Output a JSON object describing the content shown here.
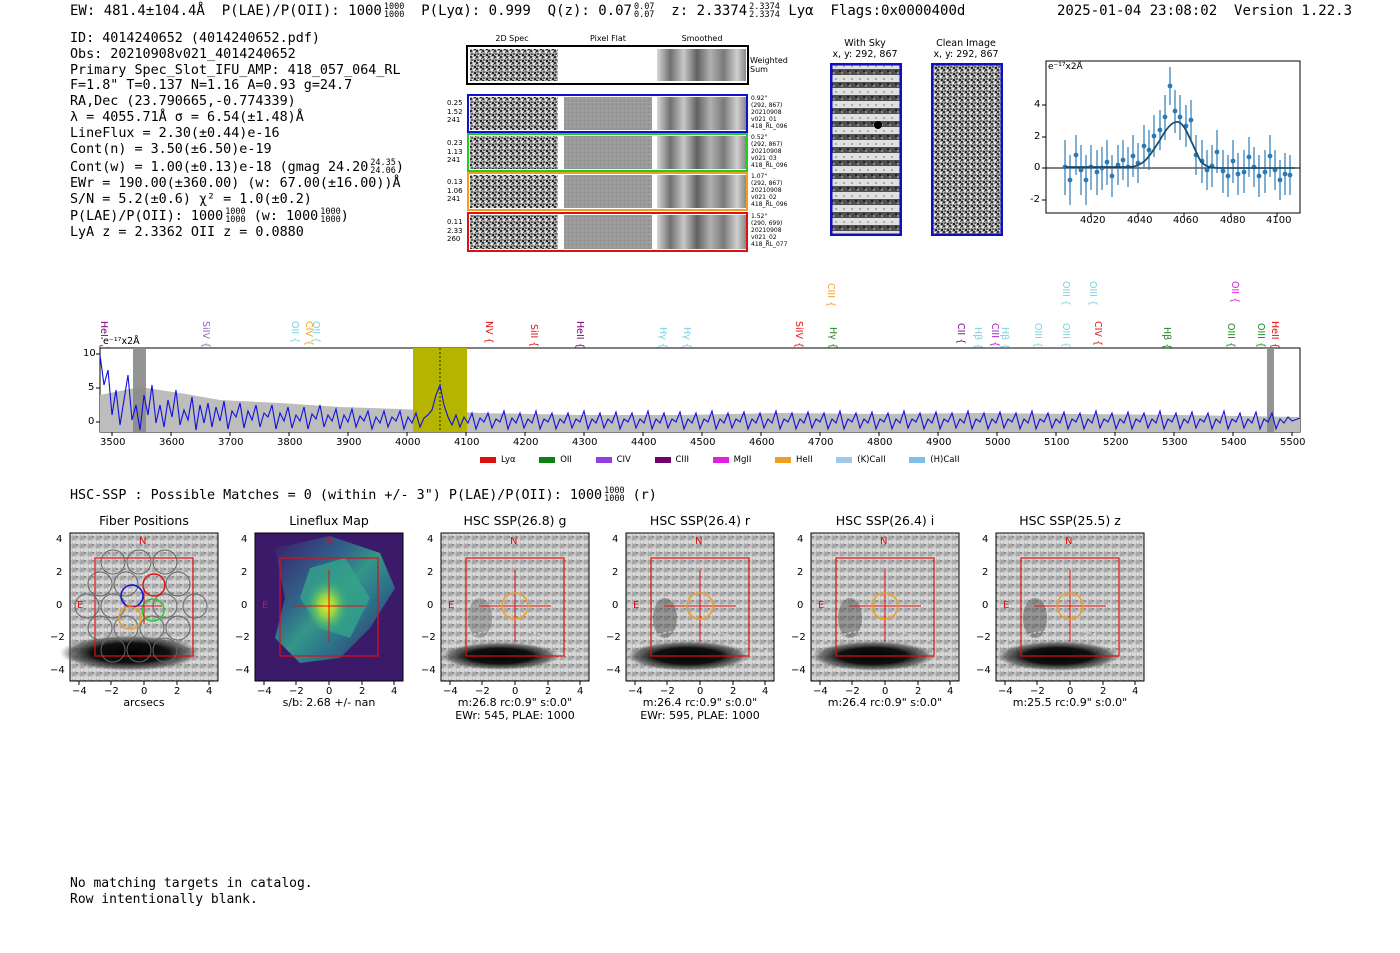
{
  "header": {
    "ew": "EW: 481.4±104.4Å",
    "plae_label": "P(LAE)/P(OII): 1000",
    "plae_hi": "1000",
    "plae_lo": "1000",
    "plya": "P(Lyα): 0.999",
    "qz_label": "Q(z): 0.07",
    "qz_hi": "0.07",
    "qz_lo": "0.07",
    "z_label": "z: 2.3374",
    "z_hi": "2.3374",
    "z_lo": "2.3374",
    "z_line": "Lyα",
    "flags": "Flags:0x0000400d",
    "datetime": "2025-01-04 23:08:02",
    "version": "Version 1.22.3"
  },
  "info": {
    "id": "ID: 4014240652 (4014240652.pdf)",
    "obs": "Obs: 20210908v021_4014240652",
    "primary": "Primary Spec_Slot_IFU_AMP: 418_057_064_RL",
    "params": "F=1.8\"  T=0.137  N=1.16  A=0.93  g=24.7",
    "radec": "RA,Dec (23.790665,-0.774339)",
    "lambda": "λ = 4055.71Å  σ = 6.54(±1.48)Å",
    "lineflux": "LineFlux = 2.30(±0.44)e-16",
    "contn": "Cont(n) = 3.50(±6.50)e-19",
    "contw": "Cont(w) = 1.00(±0.13)e-18 (gmag 24.20",
    "contw_hi": "24.35",
    "contw_lo": "24.06",
    "contw_end": ")",
    "ewr": "EWr = 190.00(±360.00) (w: 67.00(±16.00))Å",
    "sn": "S/N = 5.2(±0.6)  χ² = 1.0(±0.2)",
    "plae": "P(LAE)/P(OII): 1000",
    "plae_hi": "1000",
    "plae_lo": "1000",
    "plae_w": "(w: 1000",
    "plae_w_hi": "1000",
    "plae_w_lo": "1000",
    "plae_w_end": ")",
    "lya_z": "LyA z = 2.3362  OII z = 0.0880"
  },
  "cutouts": {
    "col_titles": [
      "2D Spec",
      "Pixel Flat",
      "Smoothed"
    ],
    "weighted_sum": [
      "Weighted",
      "Sum"
    ],
    "rows": [
      {
        "left": [
          "0.25",
          "1.52",
          "241"
        ],
        "right": [
          "0.92\"",
          "(292, 867)",
          "20210908",
          "v021_01",
          "418_RL_096"
        ],
        "color": "#1010d0"
      },
      {
        "left": [
          "0.23",
          "1.13",
          "241"
        ],
        "right": [
          "0.52\"",
          "(292, 867)",
          "20210908",
          "v021_03",
          "418_RL_096"
        ],
        "color": "#22cc22"
      },
      {
        "left": [
          "0.13",
          "1.06",
          "241"
        ],
        "right": [
          "1.07\"",
          "(292, 867)",
          "20210908",
          "v021_02",
          "418_RL_096"
        ],
        "color": "#f0a020"
      },
      {
        "left": [
          "0.11",
          "2.33",
          "260"
        ],
        "right": [
          "1.52\"",
          "(290, 699)",
          "20210908",
          "v021_02",
          "418_RL_077"
        ],
        "color": "#e01010"
      }
    ]
  },
  "sky": {
    "with_sky_title": "With Sky",
    "with_sky_coords": "x, y: 292, 867",
    "clean_title": "Clean Image",
    "clean_coords": "x, y: 292, 867"
  },
  "fit_plot": {
    "unit": "e⁻¹⁷x2Å",
    "xticks": [
      "4020",
      "4040",
      "4060",
      "4080",
      "4100"
    ],
    "yticks": [
      "4",
      "2",
      "0",
      "-2"
    ]
  },
  "spectrum": {
    "unit": "e⁻¹⁷x2Å",
    "yticks": [
      "10",
      "5",
      "0"
    ],
    "xticks": [
      "3500",
      "3600",
      "3700",
      "3800",
      "3900",
      "4000",
      "4100",
      "4200",
      "4300",
      "4400",
      "4500",
      "4600",
      "4700",
      "4800",
      "4900",
      "5000",
      "5100",
      "5200",
      "5300",
      "5400",
      "5500"
    ],
    "line_ids": [
      {
        "label": "HeII",
        "color": "#800080"
      },
      {
        "label": "SiIV",
        "color": "#9060c0"
      },
      {
        "label": "OII",
        "color": "#80d0e0"
      },
      {
        "label": "CIV",
        "color": "#f0a020"
      },
      {
        "label": "OII",
        "color": "#80d0e0"
      },
      {
        "label": "NV",
        "color": "#e01010"
      },
      {
        "label": "SiII",
        "color": "#e01010"
      },
      {
        "label": "HeII",
        "color": "#800080"
      },
      {
        "label": "Hγ",
        "color": "#80d0e0"
      },
      {
        "label": "Hγ",
        "color": "#80d0e0"
      },
      {
        "label": "SiIV",
        "color": "#e01010"
      },
      {
        "label": "CIII",
        "color": "#f0a020"
      },
      {
        "label": "Hγ",
        "color": "#228822"
      },
      {
        "label": "CII",
        "color": "#800080"
      },
      {
        "label": "Hβ",
        "color": "#80d0e0"
      },
      {
        "label": "CIII",
        "color": "#a020d0"
      },
      {
        "label": "Hβ",
        "color": "#80d0e0"
      },
      {
        "label": "OIII",
        "color": "#80d0e0"
      },
      {
        "label": "OIII",
        "color": "#80d0e0"
      },
      {
        "label": "OIII",
        "color": "#80d0e0"
      },
      {
        "label": "OIII",
        "color": "#80d0e0"
      },
      {
        "label": "CIV",
        "color": "#e01010"
      },
      {
        "label": "Hβ",
        "color": "#228822"
      },
      {
        "label": "OII",
        "color": "#e020e0"
      },
      {
        "label": "OIII",
        "color": "#228822"
      },
      {
        "label": "OIII",
        "color": "#228822"
      },
      {
        "label": "HeII",
        "color": "#e01010"
      }
    ],
    "legend": [
      {
        "label": "Lyα",
        "color": "#e01010"
      },
      {
        "label": "OII",
        "color": "#108010"
      },
      {
        "label": "CIV",
        "color": "#9040e0"
      },
      {
        "label": "CIII",
        "color": "#700070"
      },
      {
        "label": "MgII",
        "color": "#e020e0"
      },
      {
        "label": "HeII",
        "color": "#f0a020"
      },
      {
        "label": "(K)CaII",
        "color": "#a0c8e8"
      },
      {
        "label": "(H)CaII",
        "color": "#80c0e8"
      }
    ]
  },
  "hsc": {
    "title": "HSC-SSP : Possible Matches = 0 (within +/- 3\")  P(LAE)/P(OII): 1000",
    "title_hi": "1000",
    "title_lo": "1000",
    "title_end": "(r)",
    "panels": [
      {
        "title": "Fiber Positions",
        "sub1": "arcsecs",
        "sub2": ""
      },
      {
        "title": "Lineflux Map",
        "sub1": "s/b: 2.68 +/- nan",
        "sub2": ""
      },
      {
        "title": "HSC SSP(26.8) g",
        "sub1": "m:26.8 rc:0.9\"  s:0.0\"",
        "sub2": "EWr: 545, PLAE: 1000"
      },
      {
        "title": "HSC SSP(26.4) r",
        "sub1": "m:26.4 rc:0.9\"  s:0.0\"",
        "sub2": "EWr: 595, PLAE: 1000"
      },
      {
        "title": "HSC SSP(26.4) i",
        "sub1": "m:26.4 rc:0.9\"  s:0.0\"",
        "sub2": ""
      },
      {
        "title": "HSC SSP(25.5) z",
        "sub1": "m:25.5 rc:0.9\"  s:0.0\"",
        "sub2": ""
      }
    ],
    "xticks": [
      "−4",
      "−2",
      "0",
      "2",
      "4"
    ],
    "yticks": [
      "4",
      "2",
      "0",
      "−2",
      "−4"
    ],
    "north": "N",
    "east": "E"
  },
  "footer": {
    "line1": "No matching targets in catalog.",
    "line2": "Row intentionally blank."
  }
}
